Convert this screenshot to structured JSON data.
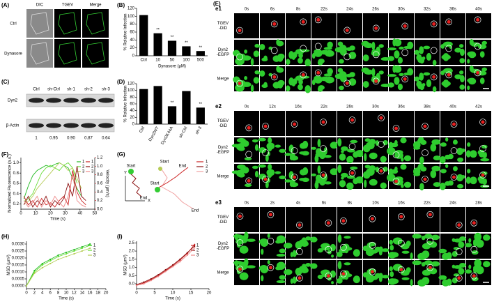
{
  "panels": {
    "A": {
      "label": "(A)",
      "columns": [
        "DIC",
        "TGEV",
        "Merge"
      ],
      "rows": [
        "Ctrl",
        "Dynasore"
      ]
    },
    "C": {
      "label": "(C)",
      "lanes": [
        "Ctrl",
        "sh-Ctrl",
        "sh-1",
        "sh-2",
        "sh-3"
      ],
      "bands": [
        "Dyn2",
        "β-Actin"
      ],
      "ratios": [
        "1",
        "0.95",
        "0.90",
        "0.87",
        "0.64"
      ]
    },
    "E": {
      "label": "(E)",
      "rows": [
        [
          "TGEV",
          "-DiD"
        ],
        [
          "Dyn2",
          "-EGFP"
        ],
        [
          "Merge"
        ]
      ],
      "blocks": [
        {
          "label": "e1",
          "times": [
            "0s",
            "6s",
            "8s",
            "22s",
            "24s",
            "26s",
            "30s",
            "32s",
            "36s",
            "40s"
          ]
        },
        {
          "label": "e2",
          "times": [
            "0s",
            "12s",
            "16s",
            "22s",
            "26s",
            "30s",
            "36s",
            "38s",
            "40s",
            "42s"
          ]
        },
        {
          "label": "e3",
          "times": [
            "0s",
            "2s",
            "4s",
            "6s",
            "8s",
            "10s",
            "16s",
            "22s",
            "24s",
            "28s"
          ]
        }
      ]
    },
    "G": {
      "label": "(G)",
      "axes": [
        "X",
        "Y"
      ],
      "trajectories": [
        {
          "name": "1",
          "start": "Start",
          "end": "End",
          "color": "#cc2222"
        },
        {
          "name": "2",
          "start": "Start",
          "end": "End",
          "color": "#8b1010"
        },
        {
          "name": "3",
          "start": "Start",
          "end": "End",
          "color": "#f0a0a0"
        }
      ]
    }
  },
  "chart_data": [
    {
      "type": "bar",
      "label": "(B)",
      "ylabel": "% Relative Infection",
      "xlabel": "Dynasore (μM)",
      "categories": [
        "Ctrl",
        "10",
        "50",
        "100",
        "500"
      ],
      "values": [
        103,
        57,
        38,
        24,
        12
      ],
      "significance": [
        null,
        "**",
        "**",
        "**",
        "**"
      ],
      "color": "#000000",
      "ylim": [
        0,
        120
      ],
      "yticks": [
        0,
        20,
        40,
        60,
        80,
        100,
        120
      ]
    },
    {
      "type": "bar",
      "label": "(D)",
      "ylabel": "% Relative Infection",
      "categories": [
        "Ctrl",
        "Dyn2WT",
        "Dyn2K44A",
        "sh-Ctrl",
        "sh-3"
      ],
      "values": [
        104,
        113,
        53,
        98,
        49
      ],
      "significance": [
        null,
        null,
        "**",
        null,
        "**"
      ],
      "color": "#000000",
      "ylim": [
        0,
        120
      ],
      "yticks": [
        0,
        20,
        40,
        60,
        80,
        100,
        120
      ]
    },
    {
      "type": "line",
      "label": "(F)",
      "ylabel": "Normalized Fluorescence (a.u.)",
      "y2label": "Velocity (μm/s)",
      "xlabel": "Time (s)",
      "x": [
        2,
        5,
        8,
        11,
        14,
        17,
        20,
        23,
        26,
        29,
        32,
        35,
        38,
        41,
        44
      ],
      "series": [
        {
          "name": "1",
          "color": "#22bb22",
          "values": [
            0.3,
            0.55,
            0.75,
            0.85,
            0.9,
            0.95,
            0.92,
            0.97,
            1.0,
            0.95,
            0.9,
            0.7,
            0.5,
            0.35,
            null
          ]
        },
        {
          "name": "2",
          "color": "#66dd33",
          "values": [
            0.25,
            0.3,
            0.4,
            0.6,
            0.8,
            0.9,
            0.95,
            0.9,
            0.85,
            0.95,
            1.0,
            0.9,
            0.6,
            null,
            null
          ]
        },
        {
          "name": "3",
          "color": "#b5cc55",
          "values": [
            0.2,
            0.25,
            0.35,
            0.5,
            0.6,
            0.7,
            0.8,
            0.9,
            1.0,
            0.95,
            0.85,
            0.9,
            0.7,
            0.5,
            null
          ]
        },
        {
          "name": "1",
          "color": "#cc2222",
          "axis": "y2",
          "values": [
            0.3,
            0.1,
            0.2,
            0.05,
            0.25,
            0.1,
            0.15,
            0.05,
            0.2,
            0.3,
            0.1,
            0.9,
            0.4,
            0.2,
            0.1
          ]
        },
        {
          "name": "2",
          "color": "#8b1010",
          "axis": "y2",
          "values": [
            0.1,
            0.3,
            0.05,
            0.2,
            0.1,
            0.3,
            0.05,
            0.2,
            0.1,
            0.25,
            0.6,
            0.3,
            1.0,
            0.3,
            0.2
          ]
        },
        {
          "name": "3",
          "color": "#ee8888",
          "axis": "y2",
          "values": [
            0.2,
            0.05,
            0.15,
            0.3,
            0.05,
            0.2,
            0.1,
            0.3,
            0.15,
            0.05,
            0.3,
            0.8,
            0.2,
            0.1,
            0.05
          ]
        }
      ],
      "xlim": [
        0,
        50
      ],
      "xticks": [
        0,
        10,
        20,
        30,
        40,
        50
      ],
      "ylim": [
        0.1,
        1.1
      ],
      "yticks": [
        0.2,
        0.4,
        0.6,
        0.8,
        {
          "value": 1.0,
          "label": "1.0"
        }
      ],
      "y2lim": [
        0,
        1.2
      ],
      "y2ticks": [
        {
          "value": 0,
          "label": "0.0"
        },
        0.2,
        0.4,
        0.6,
        0.8,
        {
          "value": 1.0,
          "label": "1.0"
        },
        1.2
      ],
      "legend": "upper right"
    },
    {
      "type": "line",
      "label": "(H)",
      "ylabel": "MSD (μm²)",
      "xlabel": "Time (s)",
      "markers": true,
      "x": [
        0,
        2,
        4,
        6,
        8,
        10,
        12,
        14,
        16
      ],
      "series": [
        {
          "name": "1",
          "color": "#22bb22",
          "values": [
            0,
            0.0011,
            0.0016,
            0.0019,
            0.0022,
            0.0024,
            0.0026,
            0.0028,
            0.003
          ]
        },
        {
          "name": "2",
          "color": "#66dd33",
          "values": [
            0,
            0.001,
            0.0015,
            0.0018,
            0.0021,
            0.0023,
            0.0025,
            0.0027,
            0.0029
          ]
        },
        {
          "name": "3",
          "color": "#b5cc55",
          "values": [
            0,
            0.0009,
            0.0013,
            0.0016,
            0.0019,
            0.0021,
            0.0023,
            0.0025,
            0.0027
          ]
        }
      ],
      "xlim": [
        0,
        20
      ],
      "xticks": [
        0,
        2,
        4,
        6,
        8,
        10,
        12,
        14,
        16,
        18,
        20
      ],
      "ylim": [
        -0.0002,
        0.0032
      ],
      "yticks": [
        {
          "value": 0,
          "label": "0.0000"
        },
        0.0005,
        {
          "value": 0.001,
          "label": "0.0010"
        },
        0.0015,
        {
          "value": 0.002,
          "label": "0.0020"
        },
        0.0025,
        {
          "value": 0.003,
          "label": "0.0030"
        }
      ],
      "legend": "upper right"
    },
    {
      "type": "line",
      "label": "(I)",
      "ylabel": "MSD (μm²)",
      "xlabel": "Time (s)",
      "markers": true,
      "x": [
        0,
        2,
        4,
        6,
        8,
        10,
        12,
        14,
        16
      ],
      "series": [
        {
          "name": "1",
          "color": "#cc2222",
          "values": [
            -0.1,
            0.05,
            0.25,
            0.5,
            0.8,
            1.1,
            1.45,
            1.85,
            2.4
          ]
        },
        {
          "name": "2",
          "color": "#8b1010",
          "values": [
            -0.05,
            0.1,
            0.3,
            0.55,
            0.85,
            1.15,
            1.5,
            1.9,
            2.3
          ]
        },
        {
          "name": "3",
          "color": "#ee8888",
          "values": [
            -0.1,
            0.0,
            0.2,
            0.45,
            0.75,
            1.05,
            1.35,
            1.75,
            2.2
          ]
        }
      ],
      "xlim": [
        0,
        20
      ],
      "xticks": [
        0,
        5,
        10,
        15,
        20
      ],
      "ylim": [
        -0.3,
        2.6
      ],
      "yticks": [
        {
          "value": 0,
          "label": "0.0"
        },
        0.5,
        {
          "value": 1,
          "label": "1.0"
        },
        1.5,
        {
          "value": 2,
          "label": "2.0"
        },
        2.5
      ],
      "legend": "upper right"
    }
  ]
}
